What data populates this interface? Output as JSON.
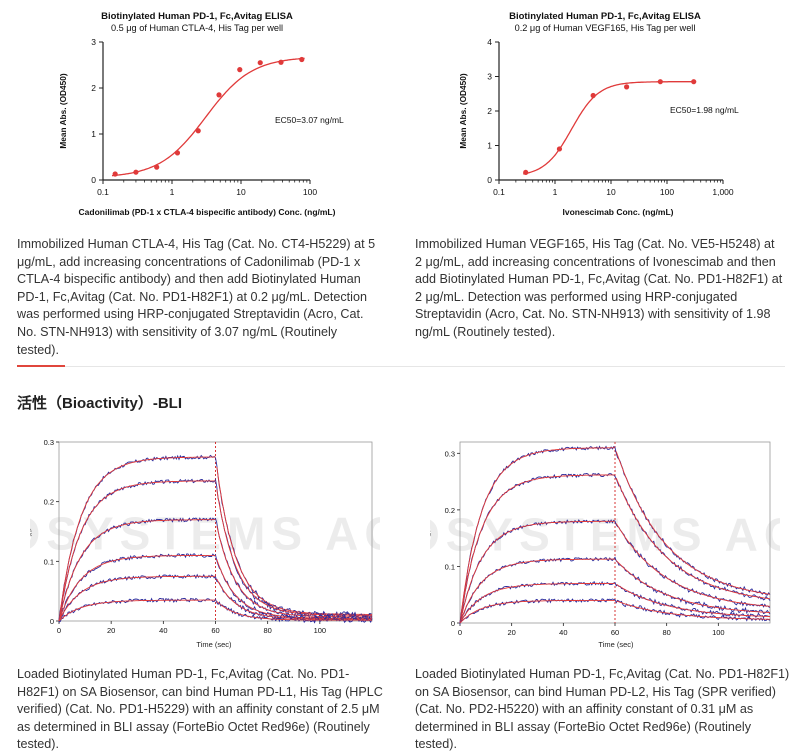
{
  "chart_data": [
    {
      "type": "scatter",
      "title": "Biotinylated Human PD-1, Fc,Avitag ELISA",
      "subtitle": "0.5 μg of Human CTLA-4, His Tag per well",
      "xlabel": "Cadonilimab (PD-1 x CTLA-4 bispecific antibody) Conc. (ng/mL)",
      "ylabel": "Mean Abs. (OD450)",
      "xscale": "log",
      "xlim": [
        0.1,
        100
      ],
      "ylim": [
        0,
        3
      ],
      "xticks": [
        "0.1",
        "1",
        "10",
        "100"
      ],
      "yticks": [
        "0",
        "1",
        "2",
        "3"
      ],
      "annotation": "EC50=3.07 ng/mL",
      "fit": {
        "bottom": 0.05,
        "top": 2.68,
        "ec50": 3.07,
        "hill": 1.3
      },
      "points": {
        "x": [
          0.15,
          0.3,
          0.6,
          1.2,
          2.4,
          4.8,
          9.6,
          19,
          38,
          76
        ],
        "y": [
          0.13,
          0.17,
          0.28,
          0.59,
          1.07,
          1.85,
          2.4,
          2.55,
          2.56,
          2.62
        ]
      }
    },
    {
      "type": "scatter",
      "title": "Biotinylated Human PD-1, Fc,Avitag ELISA",
      "subtitle": "0.2 μg of Human VEGF165, His Tag per well",
      "xlabel": "Ivonescimab Conc. (ng/mL)",
      "ylabel": "Mean Abs. (OD450)",
      "xscale": "log",
      "xlim": [
        0.1,
        1000
      ],
      "ylim": [
        0,
        4
      ],
      "xticks": [
        "0.1",
        "1",
        "10",
        "100",
        "1,000"
      ],
      "yticks": [
        "0",
        "1",
        "2",
        "3",
        "4"
      ],
      "annotation": "EC50=1.98 ng/mL",
      "fit": {
        "bottom": 0.1,
        "top": 2.85,
        "ec50": 1.98,
        "hill": 1.8
      },
      "points": {
        "x": [
          0.3,
          1.2,
          4.8,
          19,
          76,
          300
        ],
        "y": [
          0.22,
          0.9,
          2.45,
          2.7,
          2.85,
          2.85
        ]
      }
    },
    {
      "type": "line",
      "xlabel": "Time (sec)",
      "ylabel": "nm",
      "xlim": [
        0,
        120
      ],
      "ylim": [
        0,
        0.3
      ],
      "xticks": [
        "0",
        "20",
        "40",
        "60",
        "80",
        "100"
      ],
      "yticks": [
        "0",
        "0.1",
        "0.2",
        "0.3"
      ],
      "dissociation_start": 60,
      "assoc_k": 0.12,
      "dissoc_k": 0.13,
      "residual": 0.04,
      "plateaus": [
        0.275,
        0.235,
        0.17,
        0.11,
        0.075,
        0.035
      ],
      "watermark": "BIOSYSTEMS ACRO"
    },
    {
      "type": "line",
      "xlabel": "Time (sec)",
      "ylabel": "nm",
      "xlim": [
        0,
        120
      ],
      "ylim": [
        0,
        0.32
      ],
      "xticks": [
        "0",
        "20",
        "40",
        "60",
        "80",
        "100"
      ],
      "yticks": [
        "0",
        "0.1",
        "0.2",
        "0.3"
      ],
      "dissociation_start": 60,
      "assoc_k": 0.12,
      "dissoc_k": 0.05,
      "residual": 0.12,
      "plateaus": [
        0.31,
        0.262,
        0.18,
        0.113,
        0.07,
        0.04
      ],
      "watermark": "BIOSYSTEMS ACRO"
    }
  ],
  "captions": {
    "elisa1": "Immobilized Human CTLA-4, His Tag (Cat. No. CT4-H5229) at 5 μg/mL, add increasing concentrations of Cadonilimab (PD-1 x CTLA-4 bispecific antibody) and then add Biotinylated Human PD-1, Fc,Avitag (Cat. No. PD1-H82F1) at 0.2 μg/mL. Detection was performed using HRP-conjugated Streptavidin (Acro, Cat. No. STN-NH913) with sensitivity of 3.07 ng/mL (Routinely tested).",
    "elisa2": "Immobilized Human VEGF165, His Tag (Cat. No. VE5-H5248) at 2 μg/mL, add increasing concentrations of Ivonescimab and then add Biotinylated Human PD-1, Fc,Avitag (Cat. No. PD1-H82F1) at 2 μg/mL. Detection was performed using HRP-conjugated Streptavidin (Acro, Cat. No. STN-NH913) with sensitivity of 1.98 ng/mL (Routinely tested).",
    "bli1": "Loaded Biotinylated Human PD-1, Fc,Avitag (Cat. No. PD1-H82F1) on SA Biosensor, can bind Human PD-L1, His Tag (HPLC verified) (Cat. No. PD1-H5229) with an affinity constant of 2.5 μM as determined in BLI assay (ForteBio Octet Red96e) (Routinely tested).",
    "bli2": "Loaded Biotinylated Human PD-1, Fc,Avitag (Cat. No. PD1-H82F1) on SA Biosensor, can bind Human PD-L2, His Tag (SPR verified) (Cat. No. PD2-H5220) with an affinity constant of 0.31 μM as determined in BLI assay (ForteBio Octet Red96e) (Routinely tested)."
  },
  "section": {
    "title": "活性（Bioactivity）-BLI"
  },
  "colors": {
    "fit": "#e03a3a",
    "point": "#e03a3a",
    "trace": "#2b2b9c",
    "axis": "#222222",
    "dash": "#d32020",
    "watermark": "#ececec"
  }
}
